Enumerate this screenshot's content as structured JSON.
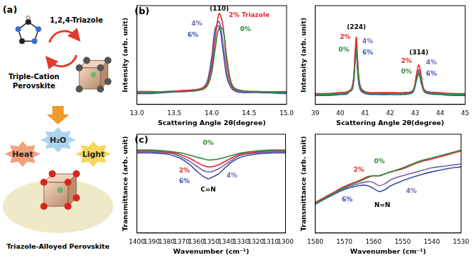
{
  "diagram": {
    "label": "(a)",
    "molecule": "1,2,4-Triazole",
    "perovskite": [
      "Triple-Cation",
      "Perovskite"
    ],
    "stressors": [
      "Heat",
      "H₂O",
      "Light"
    ],
    "product": "Triazole-Alloyed Perovskite"
  },
  "panel_labels": [
    "(b)",
    "(c)"
  ],
  "chart_data": [
    {
      "type": "line",
      "x_label": "Scattering Angle 2θ(degree)",
      "y_label": "Intensity (arb. unit)",
      "x": [
        13.0,
        13.2,
        13.4,
        13.6,
        13.8,
        13.9,
        13.95,
        14.0,
        14.05,
        14.1,
        14.15,
        14.2,
        14.25,
        14.3,
        14.4,
        14.6,
        15.0
      ],
      "series": [
        {
          "name": "0%",
          "color": "#2e8b3a",
          "values": [
            12,
            12,
            13,
            13,
            14,
            16,
            20,
            32,
            58,
            78,
            76,
            48,
            25,
            17,
            14,
            13,
            12
          ]
        },
        {
          "name": "2% Triazole",
          "color": "#e8262a",
          "values": [
            13,
            13,
            13,
            14,
            15,
            17,
            22,
            36,
            68,
            92,
            80,
            42,
            22,
            16,
            14,
            13,
            13
          ]
        },
        {
          "name": "4%",
          "color": "#7b5fb0",
          "values": [
            12,
            12,
            13,
            14,
            15,
            18,
            24,
            42,
            76,
            84,
            62,
            32,
            19,
            15,
            13,
            13,
            12
          ]
        },
        {
          "name": "6%",
          "color": "#3a4ea8",
          "values": [
            11,
            11,
            12,
            13,
            14,
            18,
            26,
            48,
            78,
            79,
            55,
            28,
            18,
            14,
            12,
            12,
            11
          ]
        }
      ],
      "xlim": [
        13.0,
        15.0
      ],
      "ylim": [
        0,
        100
      ],
      "xticks": [
        {
          "value": 13,
          "label": "13.0"
        },
        13.5,
        {
          "value": 14,
          "label": "14.0"
        },
        14.5,
        {
          "value": 15,
          "label": "15.0"
        }
      ],
      "yticks": [],
      "tick_labels": "x",
      "grid": false,
      "annotations": [
        {
          "text": "(110)",
          "x": 14.1,
          "y": 97,
          "color": "#000000"
        },
        {
          "text": "2% Triazole",
          "x": 14.5,
          "y": 90,
          "color": "#e8262a"
        },
        {
          "text": "4%",
          "x": 13.8,
          "y": 82,
          "color": "#7b5fb0"
        },
        {
          "text": "0%",
          "x": 14.45,
          "y": 76,
          "color": "#2e8b3a"
        },
        {
          "text": "6%",
          "x": 13.75,
          "y": 70,
          "color": "#3a4ea8"
        }
      ]
    },
    {
      "type": "line",
      "x_label": "Scattering Angle 2θ(degree)",
      "y_label": "Intensity (arb. unit)",
      "x": [
        39,
        39.5,
        40,
        40.3,
        40.5,
        40.6,
        40.65,
        40.7,
        40.8,
        41,
        41.5,
        42,
        42.5,
        42.9,
        43.05,
        43.15,
        43.25,
        43.4,
        44,
        44.5,
        45
      ],
      "series": [
        {
          "name": "0%",
          "color": "#2e8b3a",
          "values": [
            10,
            10,
            11,
            12,
            16,
            42,
            55,
            40,
            18,
            12,
            11,
            11,
            11,
            13,
            25,
            33,
            24,
            13,
            11,
            10,
            10
          ]
        },
        {
          "name": "2%",
          "color": "#e8262a",
          "values": [
            11,
            11,
            12,
            13,
            18,
            54,
            68,
            45,
            19,
            13,
            12,
            12,
            12,
            14,
            30,
            40,
            28,
            14,
            12,
            11,
            11
          ]
        },
        {
          "name": "4%",
          "color": "#7b5fb0",
          "values": [
            10,
            10,
            11,
            12,
            19,
            52,
            60,
            38,
            17,
            12,
            11,
            11,
            11,
            13,
            28,
            35,
            24,
            13,
            11,
            10,
            10
          ]
        },
        {
          "name": "6%",
          "color": "#3a4ea8",
          "values": [
            9,
            9,
            10,
            11,
            20,
            48,
            52,
            32,
            15,
            11,
            10,
            10,
            10,
            12,
            24,
            31,
            21,
            12,
            10,
            9,
            9
          ]
        }
      ],
      "xlim": [
        39,
        45
      ],
      "ylim": [
        0,
        100
      ],
      "xticks": [
        39,
        40,
        41,
        42,
        43,
        44,
        45
      ],
      "yticks": [],
      "tick_labels": "x",
      "grid": false,
      "annotations": [
        {
          "text": "(224)",
          "x": 40.65,
          "y": 78,
          "color": "#000000"
        },
        {
          "text": "(314)",
          "x": 43.15,
          "y": 52,
          "color": "#000000"
        },
        {
          "text": "2%",
          "x": 40.2,
          "y": 68,
          "color": "#e8262a"
        },
        {
          "text": "4%",
          "x": 41.1,
          "y": 64,
          "color": "#7b5fb0"
        },
        {
          "text": "0%",
          "x": 40.15,
          "y": 55,
          "color": "#2e8b3a"
        },
        {
          "text": "6%",
          "x": 41.1,
          "y": 52,
          "color": "#3a4ea8"
        },
        {
          "text": "2%",
          "x": 42.65,
          "y": 44,
          "color": "#e8262a"
        },
        {
          "text": "4%",
          "x": 43.65,
          "y": 42,
          "color": "#7b5fb0"
        },
        {
          "text": "0%",
          "x": 42.65,
          "y": 33,
          "color": "#2e8b3a"
        },
        {
          "text": "6%",
          "x": 43.65,
          "y": 31,
          "color": "#3a4ea8"
        }
      ]
    },
    {
      "type": "line",
      "x_label": "Wavenumber (cm⁻¹)",
      "y_label": "Transmittance (arb. unit)",
      "x": [
        1400,
        1390,
        1380,
        1375,
        1370,
        1365,
        1360,
        1355,
        1352,
        1350,
        1345,
        1340,
        1335,
        1330,
        1320,
        1310,
        1300
      ],
      "series": [
        {
          "name": "0%",
          "color": "#2e8b3a",
          "values": [
            84,
            84,
            83,
            82,
            81,
            79,
            77,
            75,
            74,
            74,
            75,
            77,
            79,
            81,
            83,
            84,
            84
          ]
        },
        {
          "name": "2%",
          "color": "#e8262a",
          "values": [
            83,
            83,
            82,
            81,
            79,
            76,
            72,
            68,
            67,
            67,
            69,
            73,
            77,
            80,
            82,
            83,
            83
          ]
        },
        {
          "name": "4%",
          "color": "#7b5fb0",
          "values": [
            82,
            82,
            81,
            80,
            77,
            73,
            68,
            63,
            62,
            62,
            65,
            70,
            75,
            79,
            81,
            82,
            82
          ]
        },
        {
          "name": "6%",
          "color": "#3a4ea8",
          "values": [
            81,
            81,
            80,
            78,
            75,
            70,
            63,
            57,
            55,
            56,
            60,
            67,
            73,
            77,
            80,
            81,
            81
          ]
        }
      ],
      "xlim": [
        1400,
        1300
      ],
      "ylim": [
        0,
        100
      ],
      "xticks": [
        1400,
        1390,
        1380,
        1370,
        1360,
        1350,
        1340,
        1330,
        1320,
        1310,
        1300
      ],
      "yticks": [],
      "tick_labels": "x",
      "grid": false,
      "annotations": [
        {
          "text": "0%",
          "x": 1352,
          "y": 91,
          "color": "#2e8b3a"
        },
        {
          "text": "2%",
          "x": 1368,
          "y": 63,
          "color": "#e8262a"
        },
        {
          "text": "4%",
          "x": 1336,
          "y": 58,
          "color": "#7b5fb0"
        },
        {
          "text": "6%",
          "x": 1368,
          "y": 52,
          "color": "#3a4ea8"
        },
        {
          "text": "C=N",
          "x": 1352,
          "y": 44,
          "color": "#000000"
        }
      ]
    },
    {
      "type": "line",
      "x_label": "Wavenumber (cm⁻¹)",
      "y_label": "Transmittance (arb. unit)",
      "x": [
        1580,
        1575,
        1570,
        1565,
        1562,
        1560,
        1558,
        1556,
        1554,
        1550,
        1545,
        1540,
        1535,
        1530
      ],
      "series": [
        {
          "name": "0%",
          "color": "#2e8b3a",
          "values": [
            30,
            38,
            46,
            52,
            56,
            58,
            58,
            60,
            62,
            66,
            72,
            76,
            80,
            84
          ]
        },
        {
          "name": "2%",
          "color": "#e8262a",
          "values": [
            31,
            39,
            47,
            53,
            57,
            58,
            58,
            60,
            62,
            65,
            71,
            75,
            79,
            83
          ]
        },
        {
          "name": "4%",
          "color": "#7b5fb0",
          "values": [
            30,
            38,
            45,
            50,
            52,
            51,
            48,
            50,
            54,
            58,
            62,
            66,
            68,
            70
          ]
        },
        {
          "name": "6%",
          "color": "#3a4ea8",
          "values": [
            29,
            37,
            44,
            48,
            48,
            45,
            42,
            44,
            48,
            53,
            58,
            62,
            65,
            67
          ]
        }
      ],
      "xlim": [
        1580,
        1530
      ],
      "ylim": [
        0,
        100
      ],
      "xticks": [
        1580,
        1570,
        1560,
        1550,
        1540,
        1530
      ],
      "yticks": [],
      "tick_labels": "x",
      "grid": false,
      "annotations": [
        {
          "text": "0%",
          "x": 1558,
          "y": 72,
          "color": "#2e8b3a"
        },
        {
          "text": "2%",
          "x": 1565,
          "y": 64,
          "color": "#e8262a"
        },
        {
          "text": "4%",
          "x": 1547,
          "y": 42,
          "color": "#7b5fb0"
        },
        {
          "text": "6%",
          "x": 1569,
          "y": 34,
          "color": "#3a4ea8"
        },
        {
          "text": "N=N",
          "x": 1557,
          "y": 28,
          "color": "#000000"
        }
      ]
    }
  ]
}
